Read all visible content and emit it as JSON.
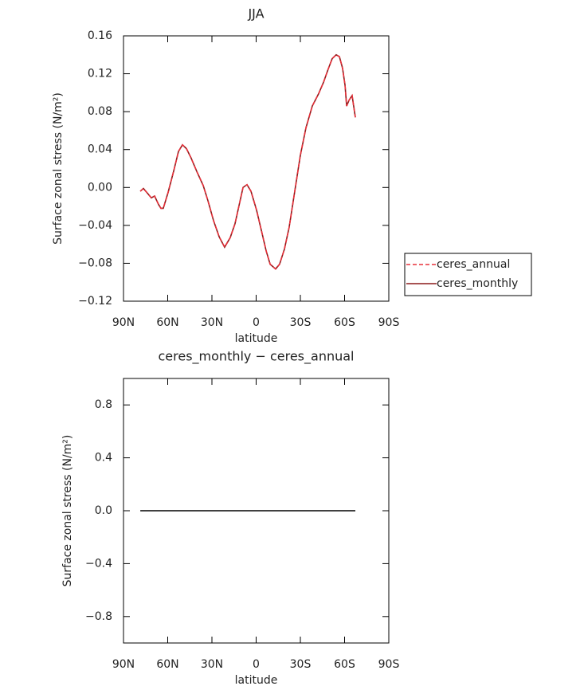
{
  "chart_data": [
    {
      "type": "line",
      "title": "JJA",
      "x_label": "latitude",
      "y_label": "Surface zonal stress (N/m²)",
      "xlim": [
        90,
        -90
      ],
      "xticks": [
        {
          "value": 90,
          "label": "90N"
        },
        {
          "value": 60,
          "label": "60N"
        },
        {
          "value": 30,
          "label": "30N"
        },
        0,
        {
          "value": -30,
          "label": "30S"
        },
        {
          "value": -60,
          "label": "60S"
        },
        {
          "value": -90,
          "label": "90S"
        }
      ],
      "ylim": [
        -0.12,
        0.16
      ],
      "yticks": [
        0.16,
        0.12,
        0.08,
        0.04,
        {
          "value": 0,
          "label": "0.00"
        },
        {
          "value": -0.04,
          "label": "−0.04"
        },
        {
          "value": -0.08,
          "label": "−0.08"
        },
        {
          "value": -0.12,
          "label": "−0.12"
        }
      ],
      "legend": "outside-right",
      "x": [
        78.6,
        76.5,
        73.8,
        71.1,
        68.9,
        66.2,
        64.6,
        63,
        59.7,
        56,
        52.7,
        50,
        47.3,
        44.1,
        40.3,
        35.9,
        32.7,
        28.9,
        25.1,
        21.4,
        17.6,
        14.3,
        11.6,
        8.9,
        6.2,
        3.5,
        -0.3,
        -4.1,
        -6.8,
        -9.5,
        -13.2,
        -15.9,
        -19.2,
        -22.4,
        -26.2,
        -30,
        -33.8,
        -38.1,
        -42.4,
        -45.7,
        -48.9,
        -51.6,
        -54.3,
        -56.5,
        -58.6,
        -60.3,
        -61.4,
        -63,
        -65.1,
        -67.3
      ],
      "series": [
        {
          "name": "ceres_annual",
          "color": "#e8303a",
          "dashed": true,
          "values": [
            -0.004,
            -0.001,
            -0.006,
            -0.011,
            -0.009,
            -0.018,
            -0.022,
            -0.022,
            -0.005,
            0.017,
            0.038,
            0.045,
            0.041,
            0.031,
            0.017,
            0.002,
            -0.014,
            -0.035,
            -0.052,
            -0.063,
            -0.053,
            -0.038,
            -0.019,
            0.0,
            0.003,
            -0.004,
            -0.024,
            -0.049,
            -0.067,
            -0.081,
            -0.086,
            -0.081,
            -0.065,
            -0.042,
            -0.004,
            0.034,
            0.063,
            0.086,
            0.099,
            0.111,
            0.125,
            0.136,
            0.14,
            0.138,
            0.126,
            0.108,
            0.086,
            0.092,
            0.097,
            0.074
          ]
        },
        {
          "name": "ceres_monthly",
          "color": "#8b1a1a",
          "dashed": false,
          "values": [
            -0.004,
            -0.001,
            -0.006,
            -0.011,
            -0.009,
            -0.018,
            -0.022,
            -0.022,
            -0.005,
            0.017,
            0.038,
            0.045,
            0.041,
            0.031,
            0.017,
            0.002,
            -0.014,
            -0.035,
            -0.052,
            -0.063,
            -0.053,
            -0.038,
            -0.019,
            0.0,
            0.003,
            -0.004,
            -0.024,
            -0.049,
            -0.067,
            -0.081,
            -0.086,
            -0.081,
            -0.065,
            -0.042,
            -0.004,
            0.034,
            0.063,
            0.086,
            0.099,
            0.111,
            0.125,
            0.136,
            0.14,
            0.138,
            0.126,
            0.108,
            0.086,
            0.092,
            0.097,
            0.074
          ]
        }
      ]
    },
    {
      "type": "line",
      "title": "ceres_monthly − ceres_annual",
      "x_label": "latitude",
      "y_label": "Surface zonal stress (N/m²)",
      "xlim": [
        90,
        -90
      ],
      "xticks": [
        {
          "value": 90,
          "label": "90N"
        },
        {
          "value": 60,
          "label": "60N"
        },
        {
          "value": 30,
          "label": "30N"
        },
        0,
        {
          "value": -30,
          "label": "30S"
        },
        {
          "value": -60,
          "label": "60S"
        },
        {
          "value": -90,
          "label": "90S"
        }
      ],
      "ylim": [
        -1,
        1
      ],
      "yticks": [
        0.8,
        0.4,
        {
          "value": 0,
          "label": "0.0"
        },
        {
          "value": -0.4,
          "label": "−0.4"
        },
        {
          "value": -0.8,
          "label": "−0.8"
        }
      ],
      "x": [
        78.6,
        -67.3
      ],
      "series": [
        {
          "color": "#000000",
          "dashed": false,
          "values": [
            0,
            0
          ]
        }
      ]
    }
  ]
}
